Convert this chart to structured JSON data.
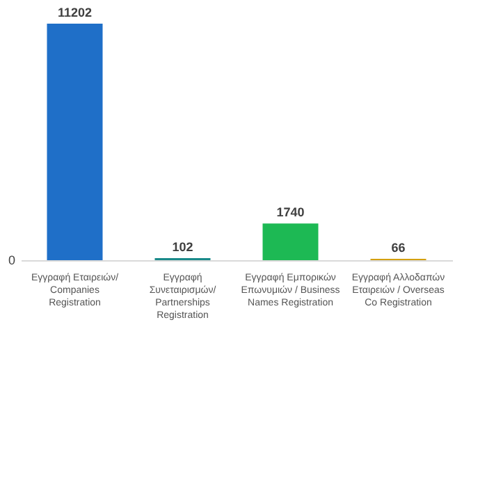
{
  "chart_data": {
    "type": "bar",
    "categories": [
      "Εγγραφή Εταιρειών/\nCompanies\nRegistration",
      "Εγγραφή\nΣυνεταιρισμών/\nPartnerships\nRegistration",
      "Εγγραφή Εμπορικών\nΕπωνυμιών / Business\nNames Registration",
      "Εγγραφή Αλλοδαπών\nΕταιρειών / Overseas\nCo Registration"
    ],
    "values": [
      11202,
      102,
      1740,
      66
    ],
    "colors": [
      "#1f6fc8",
      "#1a8a8a",
      "#1db954",
      "#d4a010"
    ],
    "data_labels": true,
    "annotations": [
      "0"
    ]
  }
}
